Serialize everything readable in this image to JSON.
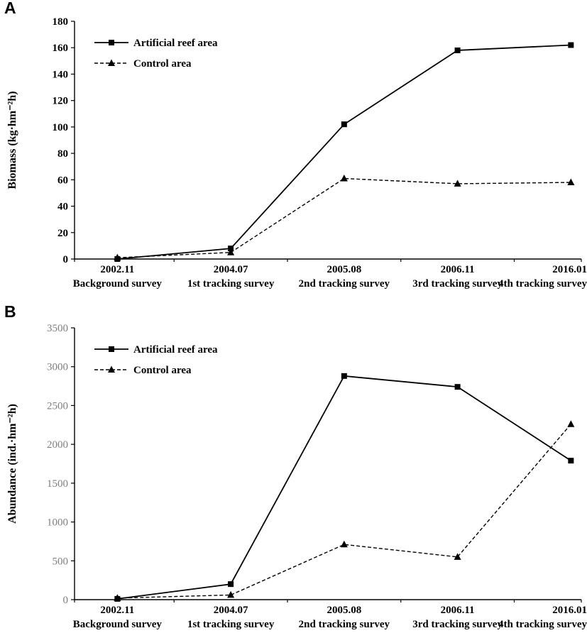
{
  "figure": {
    "panels": [
      {
        "label": "A"
      },
      {
        "label": "B"
      }
    ]
  },
  "chart_data": [
    {
      "type": "line",
      "title": "",
      "ylabel": "Biomass (kg·hm⁻²h)",
      "xlabel": "",
      "categories": [
        "2002.11",
        "2004.07",
        "2005.08",
        "2006.11",
        "2016.01"
      ],
      "category_sublabels": [
        "Background survey",
        "1st tracking survey",
        "2nd tracking survey",
        "3rd tracking survey",
        "4th tracking survey"
      ],
      "ylim": [
        0,
        180
      ],
      "ytick_step": 20,
      "grid": false,
      "legend_position": "top-left-inside",
      "axis_color": "#000000",
      "ytick_style": {
        "color": "#000000",
        "bold": true
      },
      "series": [
        {
          "name": "Artificial reef area",
          "marker": "square",
          "line_style": "solid",
          "color": "#000000",
          "values": [
            0,
            8,
            102,
            158,
            162
          ]
        },
        {
          "name": "Control area",
          "marker": "triangle",
          "line_style": "dashed",
          "color": "#000000",
          "values": [
            1,
            5,
            61,
            57,
            58
          ]
        }
      ]
    },
    {
      "type": "line",
      "title": "",
      "ylabel": "Abundance (ind.·hm⁻²h)",
      "xlabel": "",
      "categories": [
        "2002.11",
        "2004.07",
        "2005.08",
        "2006.11",
        "2016.01"
      ],
      "category_sublabels": [
        "Background survey",
        "1st tracking survey",
        "2nd tracking survey",
        "3rd tracking survey",
        "4th tracking survey"
      ],
      "ylim": [
        0,
        3500
      ],
      "ytick_step": 500,
      "grid": false,
      "legend_position": "top-left-inside",
      "axis_color": "#000000",
      "ytick_style": {
        "color": "#7f7f7f",
        "bold": false
      },
      "series": [
        {
          "name": "Artificial reef area",
          "marker": "square",
          "line_style": "solid",
          "color": "#000000",
          "values": [
            10,
            200,
            2880,
            2740,
            1790
          ]
        },
        {
          "name": "Control area",
          "marker": "triangle",
          "line_style": "dashed",
          "color": "#000000",
          "values": [
            20,
            60,
            710,
            550,
            2260
          ]
        }
      ]
    }
  ]
}
